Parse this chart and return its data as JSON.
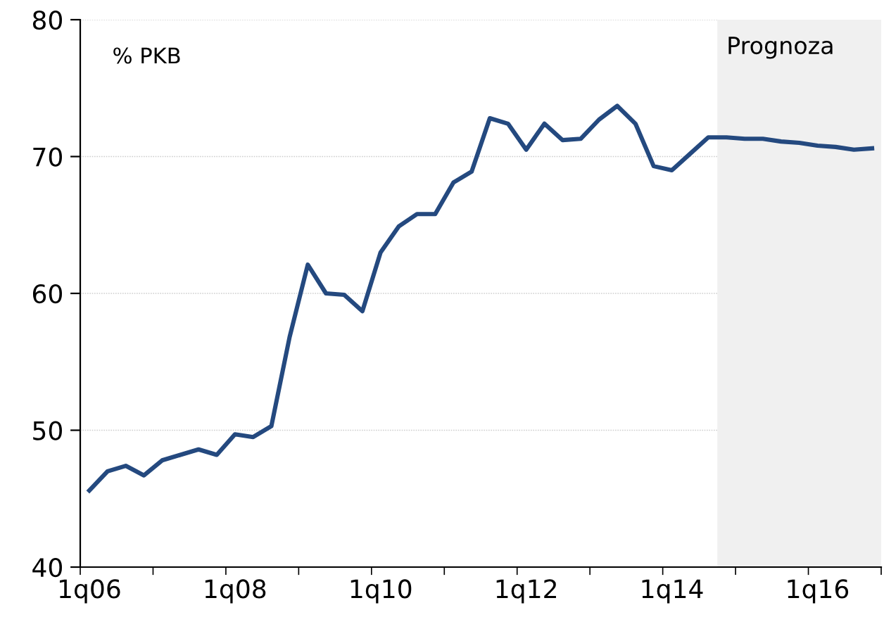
{
  "chart_data": {
    "type": "line",
    "annotations": [
      "% PKB",
      "Prognoza"
    ],
    "categories": [
      "1q06",
      null,
      null,
      null,
      null,
      null,
      null,
      null,
      "1q08",
      null,
      null,
      null,
      null,
      null,
      null,
      null,
      "1q10",
      null,
      null,
      null,
      null,
      null,
      null,
      null,
      "1q12",
      null,
      null,
      null,
      null,
      null,
      null,
      null,
      "1q14",
      null,
      null,
      null,
      null,
      null,
      null,
      null,
      "1q16",
      null,
      null,
      null
    ],
    "series": [
      {
        "color": "#24497f",
        "values": [
          45.6,
          47.0,
          47.4,
          46.7,
          47.8,
          48.2,
          48.6,
          48.2,
          49.7,
          49.5,
          50.3,
          56.8,
          62.1,
          60.0,
          59.9,
          58.7,
          63.0,
          64.9,
          65.8,
          65.8,
          68.1,
          68.9,
          72.8,
          72.4,
          70.5,
          72.4,
          71.2,
          71.3,
          72.7,
          73.7,
          72.4,
          69.3,
          69.0,
          70.2,
          71.4,
          71.4,
          71.3,
          71.3,
          71.1,
          71.0,
          70.8,
          70.7,
          70.5,
          70.6
        ]
      }
    ],
    "ylim": [
      40,
      80
    ],
    "yticks": [
      40,
      50,
      60,
      70,
      80
    ],
    "grid": "y",
    "line_style": "solid",
    "marker": "none"
  }
}
